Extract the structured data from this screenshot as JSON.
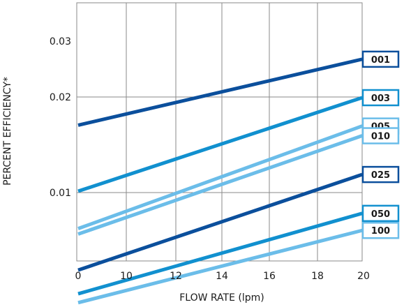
{
  "chart_data": {
    "type": "line",
    "xlabel": "FLOW RATE (lpm)",
    "ylabel": "PERCENT EFFICIENCY*",
    "x_ticks": [
      "0",
      "10",
      "12",
      "14",
      "16",
      "18",
      "20"
    ],
    "y_ticks": [
      "0.01",
      "0.02",
      "0.03"
    ],
    "xlim": [
      8,
      20
    ],
    "grid": true,
    "legend_placement": "right",
    "series": [
      {
        "name": "001",
        "color": "#0b4f9c",
        "x": [
          8,
          20
        ],
        "y": [
          0.0163,
          0.0263
        ]
      },
      {
        "name": "003",
        "color": "#1190cf",
        "x": [
          8,
          20
        ],
        "y": [
          0.0101,
          0.0199
        ]
      },
      {
        "name": "005",
        "color": "#6bbde9",
        "x": [
          8,
          20
        ],
        "y": [
          0.0077,
          0.0162
        ]
      },
      {
        "name": "010",
        "color": "#6bbde9",
        "x": [
          8,
          20
        ],
        "y": [
          0.0074,
          0.0151
        ]
      },
      {
        "name": "025",
        "color": "#0b4f9c",
        "x": [
          8,
          20
        ],
        "y": [
          0.0057,
          0.0114
        ]
      },
      {
        "name": "050",
        "color": "#1190cf",
        "x": [
          8,
          20
        ],
        "y": [
          0.0048,
          0.0086
        ]
      },
      {
        "name": "100",
        "color": "#6bbde9",
        "x": [
          8,
          20
        ],
        "y": [
          0.0045,
          0.0076
        ]
      }
    ]
  }
}
